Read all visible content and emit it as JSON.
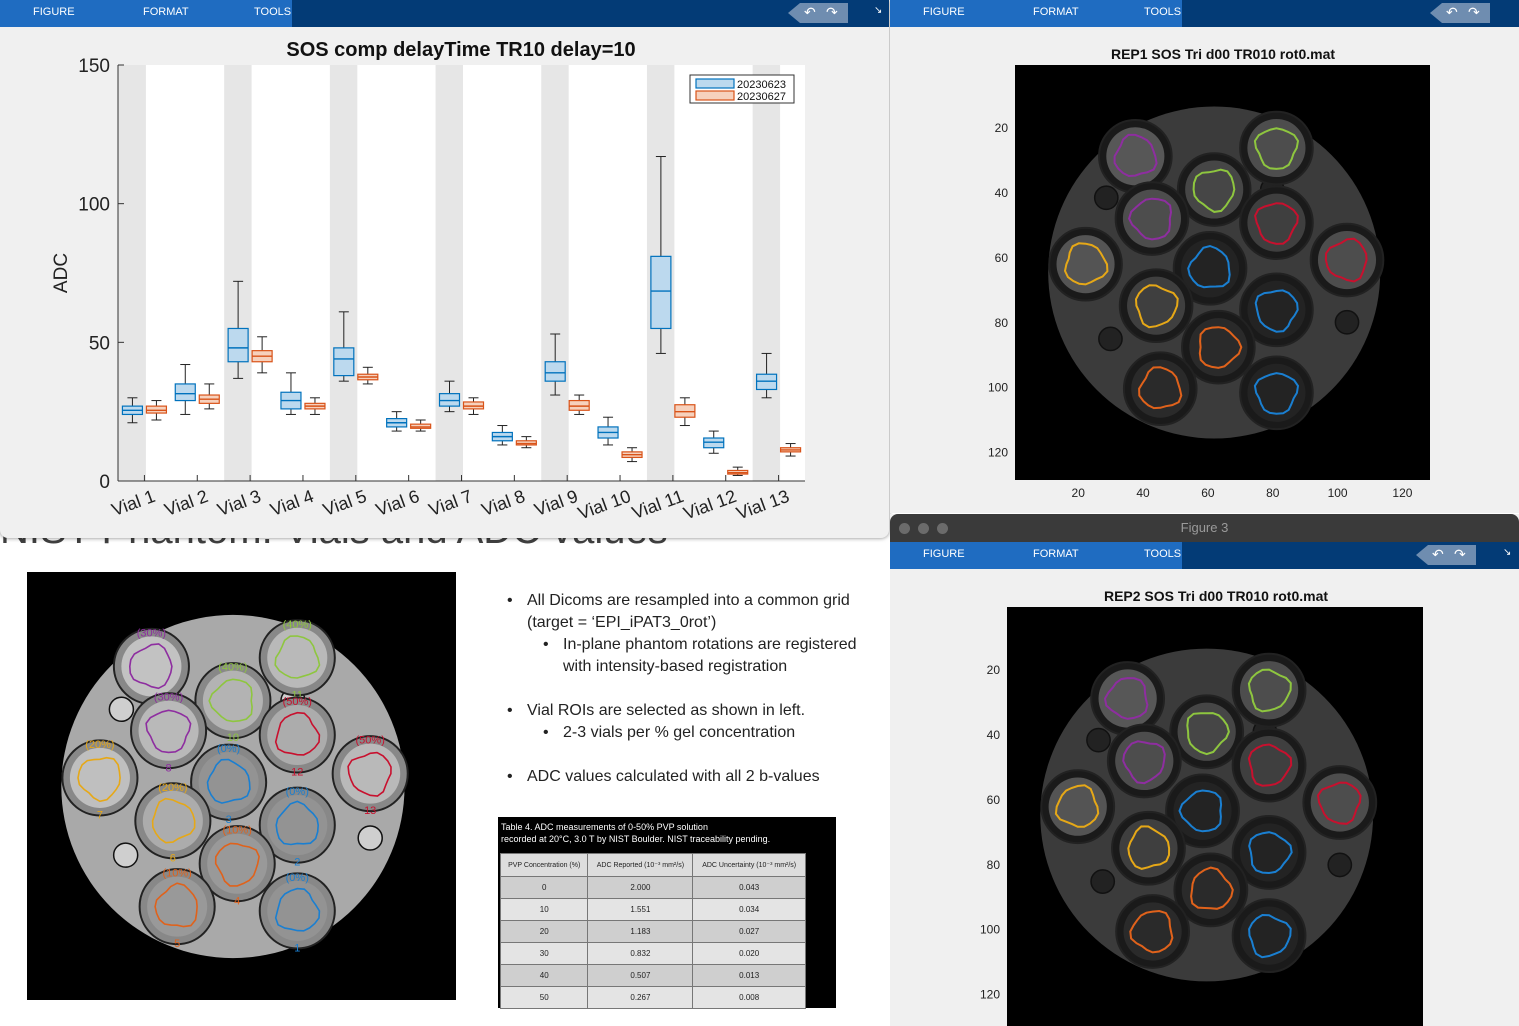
{
  "slide": {
    "title": "NIST Phantom: Vials and ADC values",
    "bullets": [
      {
        "level": 1,
        "text": "All Dicoms are resampled into a common grid (target = ‘EPI_iPAT3_0rot’)"
      },
      {
        "level": 2,
        "text": "In-plane phantom rotations are registered with intensity-based registration"
      },
      {
        "level": 1,
        "text": "Vial ROIs are selected as shown in left."
      },
      {
        "level": 2,
        "text": "2-3 vials per % gel concentration"
      },
      {
        "level": 1,
        "text": "ADC values calculated with all 2 b-values"
      }
    ],
    "vial_labels": [
      {
        "pct": "(30%)",
        "num": "9",
        "color": "#8e2ea0"
      },
      {
        "pct": "(40%)",
        "num": "11",
        "color": "#8ec63f"
      },
      {
        "pct": "(40%)",
        "num": "10",
        "color": "#8ec63f"
      },
      {
        "pct": "(30%)",
        "num": "8",
        "color": "#8e2ea0"
      },
      {
        "pct": "(50%)",
        "num": "12",
        "color": "#c8102e"
      },
      {
        "pct": "(20%)",
        "num": "7",
        "color": "#e6a817"
      },
      {
        "pct": "(0%)",
        "num": "3",
        "color": "#1a7fd1"
      },
      {
        "pct": "(50%)",
        "num": "13",
        "color": "#c8102e"
      },
      {
        "pct": "(20%)",
        "num": "6",
        "color": "#e6a817"
      },
      {
        "pct": "(0%)",
        "num": "2",
        "color": "#1a7fd1"
      },
      {
        "pct": "(10%)",
        "num": "4",
        "color": "#e0621b"
      },
      {
        "pct": "(10%)",
        "num": "5",
        "color": "#e0621b"
      },
      {
        "pct": "(0%)",
        "num": "1",
        "color": "#1a7fd1"
      }
    ],
    "table": {
      "caption_line1": "Table 4. ADC measurements of 0-50% PVP solution",
      "caption_line2": "recorded at 20°C, 3.0 T by NIST Boulder. NIST traceability pending.",
      "headers": [
        "PVP Concentration (%)",
        "ADC Reported (10⁻³ mm²/s)",
        "ADC Uncertainty (10⁻³ mm²/s)"
      ],
      "rows": [
        [
          "0",
          "2.000",
          "0.043"
        ],
        [
          "10",
          "1.551",
          "0.034"
        ],
        [
          "20",
          "1.183",
          "0.027"
        ],
        [
          "30",
          "0.832",
          "0.020"
        ],
        [
          "40",
          "0.507",
          "0.013"
        ],
        [
          "50",
          "0.267",
          "0.008"
        ]
      ]
    }
  },
  "toolstrip": {
    "tabs": [
      "FIGURE",
      "FORMAT",
      "TOOLS"
    ]
  },
  "figure3": {
    "window_title": "Figure 3"
  },
  "icons": [
    "undo-icon",
    "redo-icon",
    "collapse-icon",
    "close-dot-icon"
  ],
  "chart_data": [
    {
      "type": "box",
      "title": "SOS comp delayTime TR10 delay=10",
      "xlabel": "",
      "ylabel": "ADC",
      "ylim": [
        0,
        150
      ],
      "yticks": [
        0,
        50,
        100,
        150
      ],
      "categories": [
        "Vial 1",
        "Vial 2",
        "Vial 3",
        "Vial 4",
        "Vial 5",
        "Vial 6",
        "Vial 7",
        "Vial 8",
        "Vial 9",
        "Vial 10",
        "Vial 11",
        "Vial 12",
        "Vial 13"
      ],
      "legend_position": "top-right",
      "alternating_background": true,
      "series": [
        {
          "name": "20230623",
          "color": "#0072bd",
          "fill": "#bcd9ee",
          "boxes": [
            {
              "min": 21,
              "q1": 24,
              "median": 25.5,
              "q3": 27,
              "max": 30
            },
            {
              "min": 24,
              "q1": 29,
              "median": 31.5,
              "q3": 35,
              "max": 42
            },
            {
              "min": 37,
              "q1": 43,
              "median": 48,
              "q3": 55,
              "max": 72
            },
            {
              "min": 24,
              "q1": 26,
              "median": 29,
              "q3": 32,
              "max": 39
            },
            {
              "min": 36,
              "q1": 38,
              "median": 44,
              "q3": 48,
              "max": 61
            },
            {
              "min": 18,
              "q1": 19.5,
              "median": 21,
              "q3": 22.5,
              "max": 25
            },
            {
              "min": 25,
              "q1": 27,
              "median": 29,
              "q3": 31.5,
              "max": 36
            },
            {
              "min": 13,
              "q1": 14.5,
              "median": 16,
              "q3": 17.5,
              "max": 20
            },
            {
              "min": 31,
              "q1": 36,
              "median": 39,
              "q3": 43,
              "max": 53
            },
            {
              "min": 13,
              "q1": 15.5,
              "median": 17.5,
              "q3": 19.5,
              "max": 23
            },
            {
              "min": 46,
              "q1": 55,
              "median": 68.5,
              "q3": 81,
              "max": 117
            },
            {
              "min": 10,
              "q1": 12,
              "median": 14,
              "q3": 15.5,
              "max": 18
            },
            {
              "min": 30,
              "q1": 33,
              "median": 36,
              "q3": 38.5,
              "max": 46
            }
          ]
        },
        {
          "name": "20230627",
          "color": "#d95319",
          "fill": "#f6d1bd",
          "boxes": [
            {
              "min": 22,
              "q1": 24.5,
              "median": 25.5,
              "q3": 27,
              "max": 29
            },
            {
              "min": 26,
              "q1": 28,
              "median": 29.5,
              "q3": 31,
              "max": 35
            },
            {
              "min": 39,
              "q1": 43,
              "median": 45,
              "q3": 47,
              "max": 52
            },
            {
              "min": 24,
              "q1": 26,
              "median": 27,
              "q3": 28,
              "max": 30
            },
            {
              "min": 35,
              "q1": 36.5,
              "median": 37.5,
              "q3": 38.5,
              "max": 41
            },
            {
              "min": 18,
              "q1": 19,
              "median": 19.5,
              "q3": 20.5,
              "max": 22
            },
            {
              "min": 24,
              "q1": 26,
              "median": 27,
              "q3": 28.5,
              "max": 30
            },
            {
              "min": 12,
              "q1": 13,
              "median": 13.5,
              "q3": 14.5,
              "max": 16
            },
            {
              "min": 24,
              "q1": 25.5,
              "median": 27,
              "q3": 29,
              "max": 31
            },
            {
              "min": 7,
              "q1": 8.5,
              "median": 9.5,
              "q3": 10.5,
              "max": 12
            },
            {
              "min": 20,
              "q1": 23,
              "median": 25,
              "q3": 27.5,
              "max": 30
            },
            {
              "min": 2,
              "q1": 2.5,
              "median": 3,
              "q3": 3.8,
              "max": 5
            },
            {
              "min": 9,
              "q1": 10.5,
              "median": 11.2,
              "q3": 12,
              "max": 13.5
            }
          ]
        }
      ]
    },
    {
      "type": "image",
      "title": "REP1 SOS Tri d00 TR010 rot0.mat",
      "xticks": [
        20,
        40,
        60,
        80,
        100,
        120
      ],
      "yticks": [
        20,
        40,
        60,
        80,
        100,
        120
      ],
      "xlim": [
        0.5,
        128.5
      ],
      "ylim": [
        0.5,
        128.5
      ]
    },
    {
      "type": "image",
      "title": "REP2 SOS Tri d00 TR010 rot0.mat",
      "yticks": [
        20,
        40,
        60,
        80,
        100,
        120
      ],
      "ylim": [
        0.5,
        128.5
      ]
    }
  ]
}
